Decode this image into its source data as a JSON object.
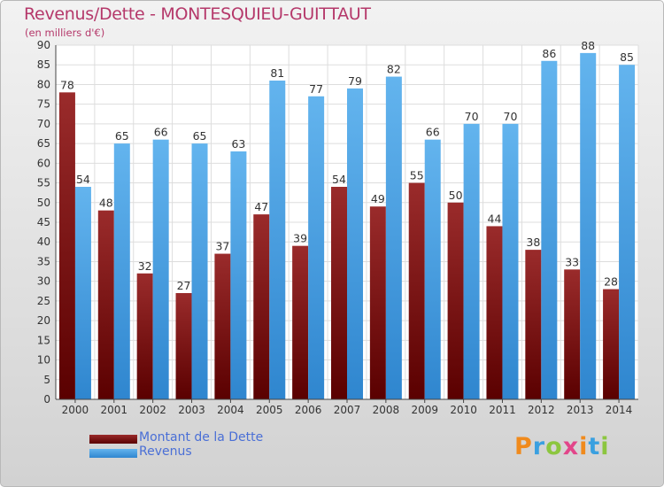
{
  "header": {
    "title": "Revenus/Dette - MONTESQUIEU-GUITTAUT",
    "subtitle": "(en milliers d'€)"
  },
  "logo": {
    "text": "Proxiti"
  },
  "colors": {
    "debt": "#7a1010",
    "revenue": "#3e9be0",
    "title": "#b5386a",
    "legend_text": "#4a6fd6"
  },
  "chart_data": {
    "type": "bar",
    "title": "Revenus/Dette - MONTESQUIEU-GUITTAUT",
    "subtitle": "(en milliers d'€)",
    "categories": [
      "2000",
      "2001",
      "2002",
      "2003",
      "2004",
      "2005",
      "2006",
      "2007",
      "2008",
      "2009",
      "2010",
      "2011",
      "2012",
      "2013",
      "2014"
    ],
    "series": [
      {
        "name": "Montant de la Dette",
        "color": "#7a1010",
        "values": [
          78,
          48,
          32,
          27,
          37,
          47,
          39,
          54,
          49,
          55,
          50,
          44,
          38,
          33,
          28
        ]
      },
      {
        "name": "Revenus",
        "color": "#3e9be0",
        "values": [
          54,
          65,
          66,
          65,
          63,
          81,
          77,
          79,
          82,
          66,
          70,
          70,
          86,
          88,
          85
        ]
      }
    ],
    "ylim": [
      0,
      90
    ],
    "yticks": [
      0,
      5,
      10,
      15,
      20,
      25,
      30,
      35,
      40,
      45,
      50,
      55,
      60,
      65,
      70,
      75,
      80,
      85,
      90
    ],
    "grid": true,
    "legend_position": "bottom-left",
    "data_labels": true
  }
}
